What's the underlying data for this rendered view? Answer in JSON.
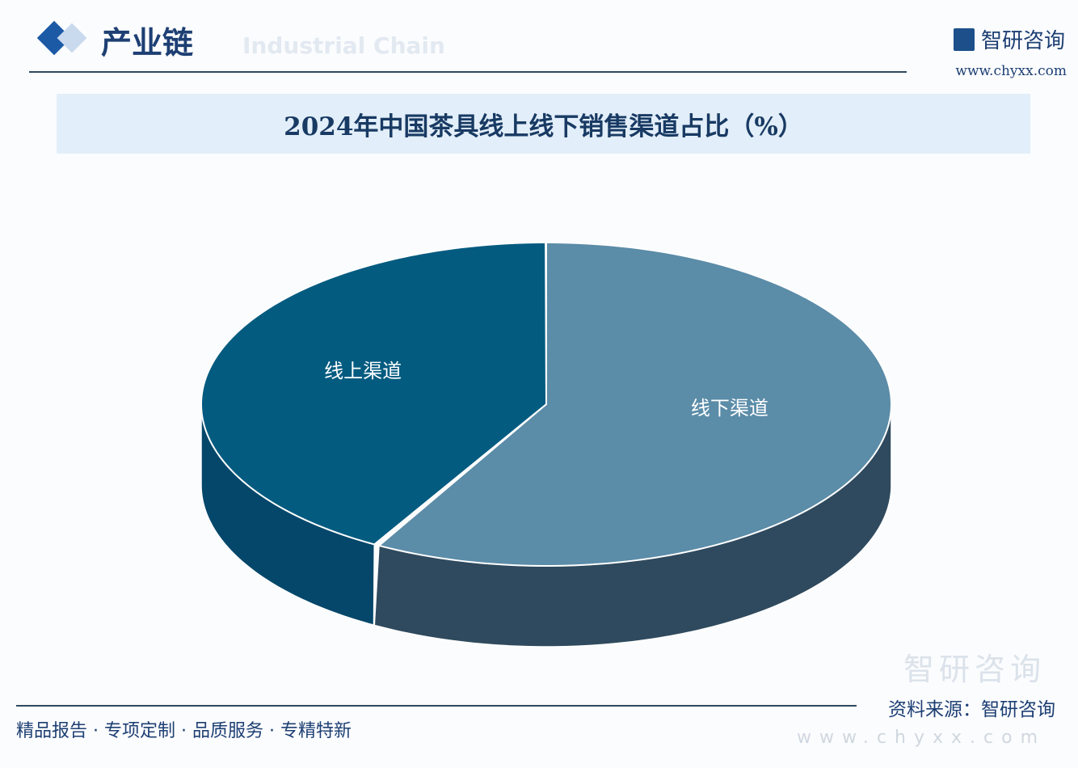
{
  "header": {
    "section": "产业链",
    "section_en": "Industrial Chain",
    "brand": "智研咨询",
    "url": "www.chyxx.com"
  },
  "chart_data": {
    "type": "pie",
    "title": "2024年中国茶具线上线下销售渠道占比（%）",
    "categories": [
      "线下渠道",
      "线上渠道"
    ],
    "values": [
      58.3,
      41.7
    ],
    "colors": [
      "#5b8ca8",
      "#045b80"
    ],
    "side_colors": [
      "#2f4a5e",
      "#04476a"
    ],
    "legend": "none",
    "data_labels": "category names only"
  },
  "footer": {
    "tagline": "精品报告 · 专项定制 · 品质服务 · 专精特新",
    "source": "资料来源：智研咨询",
    "watermark": "智研咨询",
    "watermark_url": "www.chyxx.com"
  }
}
